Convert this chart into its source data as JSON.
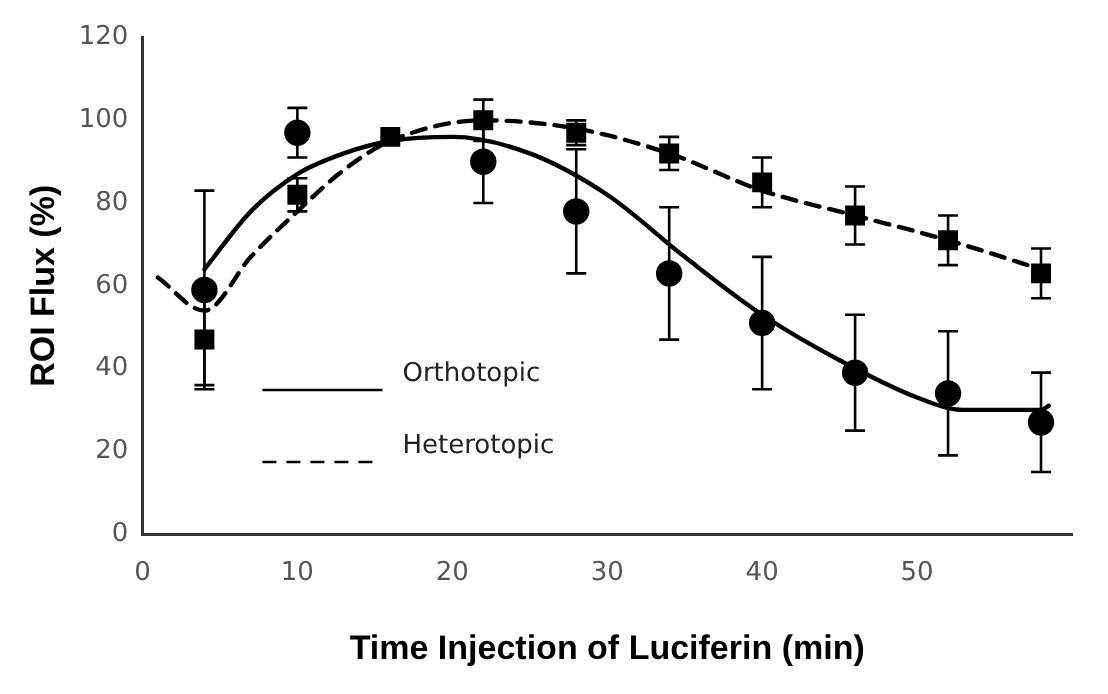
{
  "chart_data": {
    "type": "scatter",
    "xlabel": "Time Injection of Luciferin (min)",
    "ylabel": "ROI Flux (%)",
    "xlim": [
      0,
      60
    ],
    "xticks": [
      0,
      10,
      20,
      30,
      40,
      50
    ],
    "ylim": [
      0,
      120
    ],
    "yticks": [
      0,
      20,
      40,
      60,
      80,
      100,
      120
    ],
    "grid": false,
    "legend": "bottom left",
    "series": [
      {
        "type": "scatter",
        "marker": "circle",
        "color": "#000000",
        "x": [
          4,
          10,
          16,
          22,
          28,
          34,
          40,
          46,
          52,
          58
        ],
        "values": [
          59,
          97,
          null,
          90,
          78,
          63,
          51,
          39,
          34,
          27
        ],
        "errors": [
          24,
          6,
          null,
          10,
          15,
          16,
          16,
          14,
          15,
          12
        ]
      },
      {
        "type": "scatter",
        "marker": "square",
        "color": "#000000",
        "x": [
          4,
          10,
          16,
          22,
          28,
          34,
          40,
          46,
          52,
          58
        ],
        "values": [
          47,
          82,
          96,
          100,
          97,
          92,
          85,
          77,
          71,
          63
        ],
        "errors": [
          11,
          4,
          null,
          5,
          3,
          4,
          6,
          7,
          6,
          6
        ]
      },
      {
        "type": "line",
        "name": "Orthotopic",
        "marker": "none",
        "line_style": "solid",
        "color": "#000000",
        "x": [
          4,
          7,
          10,
          13,
          16,
          20,
          25,
          30,
          35,
          40,
          45,
          50,
          53,
          58,
          58.5
        ],
        "values": [
          64,
          78,
          87,
          92,
          95,
          96,
          92,
          82,
          67,
          53,
          42,
          33,
          30,
          30,
          31
        ]
      },
      {
        "type": "line",
        "name": "Heterotopic",
        "marker": "none",
        "line_style": "dashed",
        "color": "#000000",
        "x": [
          1,
          4,
          7,
          10,
          13,
          16,
          22,
          28,
          34,
          40,
          46,
          52,
          58
        ],
        "values": [
          62,
          54,
          67,
          78,
          88,
          95,
          100,
          98,
          92,
          83,
          77,
          71,
          64
        ]
      }
    ]
  }
}
